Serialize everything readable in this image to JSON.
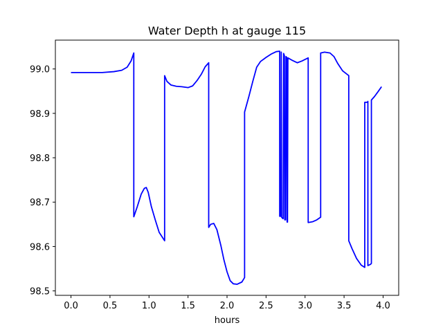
{
  "chart_data": {
    "type": "line",
    "title": "Water Depth h at gauge 115",
    "xlabel": "hours",
    "ylabel": "",
    "xlim": [
      -0.2,
      4.2
    ],
    "ylim": [
      98.49,
      99.065
    ],
    "grid": false,
    "x_ticks": [
      0.0,
      0.5,
      1.0,
      1.5,
      2.0,
      2.5,
      3.0,
      3.5,
      4.0
    ],
    "x_tick_labels": [
      "0.0",
      "0.5",
      "1.0",
      "1.5",
      "2.0",
      "2.5",
      "3.0",
      "3.5",
      "4.0"
    ],
    "y_ticks": [
      98.5,
      98.6,
      98.7,
      98.8,
      98.9,
      99.0
    ],
    "y_tick_labels": [
      "98.5",
      "98.6",
      "98.7",
      "98.8",
      "98.9",
      "99.0"
    ],
    "series": [
      {
        "color": "#0000ff",
        "points": [
          [
            0.0,
            98.992
          ],
          [
            0.2,
            98.992
          ],
          [
            0.4,
            98.992
          ],
          [
            0.55,
            98.994
          ],
          [
            0.65,
            98.997
          ],
          [
            0.72,
            99.004
          ],
          [
            0.77,
            99.018
          ],
          [
            0.805,
            99.036
          ],
          [
            0.805,
            98.667
          ],
          [
            0.85,
            98.69
          ],
          [
            0.9,
            98.718
          ],
          [
            0.94,
            98.731
          ],
          [
            0.965,
            98.733
          ],
          [
            0.99,
            98.722
          ],
          [
            1.03,
            98.69
          ],
          [
            1.08,
            98.66
          ],
          [
            1.13,
            98.632
          ],
          [
            1.2,
            98.613
          ],
          [
            1.2,
            98.985
          ],
          [
            1.23,
            98.972
          ],
          [
            1.28,
            98.964
          ],
          [
            1.35,
            98.961
          ],
          [
            1.42,
            98.96
          ],
          [
            1.5,
            98.958
          ],
          [
            1.56,
            98.962
          ],
          [
            1.62,
            98.975
          ],
          [
            1.67,
            98.988
          ],
          [
            1.72,
            99.005
          ],
          [
            1.765,
            99.014
          ],
          [
            1.765,
            98.643
          ],
          [
            1.79,
            98.65
          ],
          [
            1.83,
            98.652
          ],
          [
            1.87,
            98.638
          ],
          [
            1.92,
            98.603
          ],
          [
            1.96,
            98.57
          ],
          [
            2.0,
            98.543
          ],
          [
            2.04,
            98.523
          ],
          [
            2.08,
            98.516
          ],
          [
            2.13,
            98.515
          ],
          [
            2.19,
            98.52
          ],
          [
            2.225,
            98.53
          ],
          [
            2.225,
            98.903
          ],
          [
            2.28,
            98.938
          ],
          [
            2.33,
            98.972
          ],
          [
            2.38,
            99.004
          ],
          [
            2.43,
            99.017
          ],
          [
            2.5,
            99.026
          ],
          [
            2.57,
            99.034
          ],
          [
            2.63,
            99.039
          ],
          [
            2.675,
            99.04
          ],
          [
            2.675,
            98.668
          ],
          [
            2.69,
            98.668
          ],
          [
            2.695,
            99.038
          ],
          [
            2.7,
            98.666
          ],
          [
            2.715,
            98.663
          ],
          [
            2.72,
            98.663
          ],
          [
            2.725,
            99.035
          ],
          [
            2.735,
            99.03
          ],
          [
            2.74,
            98.66
          ],
          [
            2.75,
            98.66
          ],
          [
            2.755,
            99.028
          ],
          [
            2.765,
            99.026
          ],
          [
            2.77,
            98.655
          ],
          [
            2.775,
            98.655
          ],
          [
            2.78,
            99.025
          ],
          [
            2.83,
            99.02
          ],
          [
            2.9,
            99.014
          ],
          [
            2.96,
            99.018
          ],
          [
            3.04,
            99.025
          ],
          [
            3.04,
            98.654
          ],
          [
            3.1,
            98.656
          ],
          [
            3.15,
            98.66
          ],
          [
            3.2,
            98.666
          ],
          [
            3.2,
            99.036
          ],
          [
            3.25,
            99.038
          ],
          [
            3.32,
            99.036
          ],
          [
            3.37,
            99.028
          ],
          [
            3.42,
            99.012
          ],
          [
            3.48,
            98.996
          ],
          [
            3.56,
            98.985
          ],
          [
            3.56,
            98.613
          ],
          [
            3.6,
            98.596
          ],
          [
            3.66,
            98.573
          ],
          [
            3.72,
            98.558
          ],
          [
            3.765,
            98.553
          ],
          [
            3.765,
            98.925
          ],
          [
            3.8,
            98.925
          ],
          [
            3.805,
            98.927
          ],
          [
            3.805,
            98.557
          ],
          [
            3.84,
            98.56
          ],
          [
            3.85,
            98.562
          ],
          [
            3.85,
            98.93
          ],
          [
            3.89,
            98.938
          ],
          [
            3.94,
            98.95
          ],
          [
            3.98,
            98.96
          ]
        ]
      }
    ]
  }
}
